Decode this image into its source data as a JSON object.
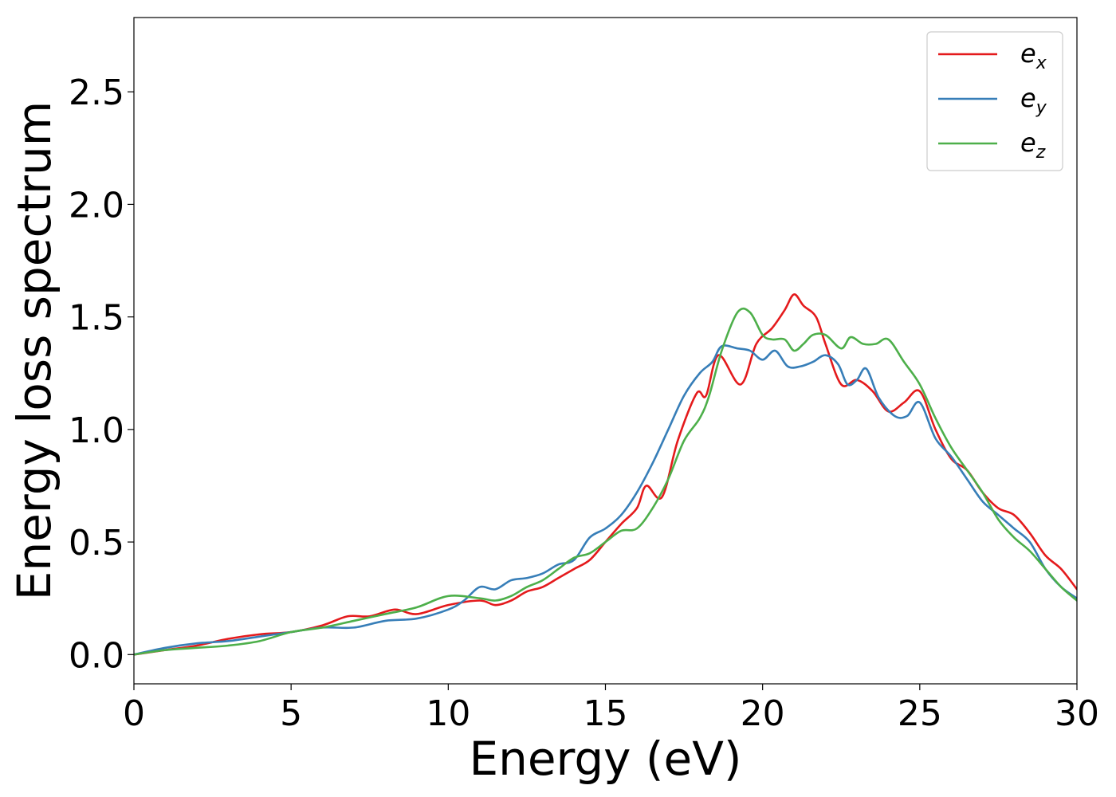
{
  "chart_data": {
    "type": "line",
    "title": "",
    "xlabel": "Energy (eV)",
    "ylabel": "Energy loss spectrum",
    "xlim": [
      0,
      30
    ],
    "ylim": [
      -0.13,
      2.83
    ],
    "xticks": [
      0,
      5,
      10,
      15,
      20,
      25,
      30
    ],
    "xtick_labels": [
      "0",
      "5",
      "10",
      "15",
      "20",
      "25",
      "30"
    ],
    "yticks": [
      0.0,
      0.5,
      1.0,
      1.5,
      2.0,
      2.5
    ],
    "ytick_labels": [
      "0.0",
      "0.5",
      "1.0",
      "1.5",
      "2.0",
      "2.5"
    ],
    "grid": false,
    "legend_position": "top-right",
    "series": [
      {
        "name": "e_x",
        "legend_base": "e",
        "legend_sub": "x",
        "color": "#e41a1c",
        "x": [
          0,
          1,
          2,
          3,
          4,
          5,
          6,
          6.8,
          7.5,
          8.3,
          9,
          10,
          11,
          11.5,
          12,
          12.5,
          13,
          13.5,
          14,
          14.5,
          15,
          15.5,
          16,
          16.3,
          16.8,
          17.3,
          17.9,
          18.2,
          18.6,
          19.3,
          19.8,
          20.3,
          20.7,
          21,
          21.3,
          21.7,
          22,
          22.5,
          23,
          23.5,
          24,
          24.5,
          25,
          25.5,
          26,
          26.5,
          27,
          27.5,
          28,
          28.5,
          29,
          29.5,
          30
        ],
        "y": [
          0.0,
          0.02,
          0.04,
          0.07,
          0.09,
          0.1,
          0.13,
          0.17,
          0.17,
          0.2,
          0.18,
          0.22,
          0.24,
          0.22,
          0.24,
          0.28,
          0.3,
          0.34,
          0.38,
          0.42,
          0.5,
          0.58,
          0.65,
          0.75,
          0.7,
          0.95,
          1.16,
          1.15,
          1.33,
          1.2,
          1.38,
          1.45,
          1.53,
          1.6,
          1.55,
          1.5,
          1.38,
          1.2,
          1.22,
          1.17,
          1.08,
          1.12,
          1.17,
          1.0,
          0.87,
          0.82,
          0.72,
          0.65,
          0.62,
          0.54,
          0.44,
          0.38,
          0.29
        ]
      },
      {
        "name": "e_y",
        "legend_base": "e",
        "legend_sub": "y",
        "color": "#377eb8",
        "x": [
          0,
          1,
          2,
          3,
          4,
          5,
          6,
          7,
          8,
          9,
          10,
          10.5,
          11,
          11.5,
          12,
          12.5,
          13,
          13.5,
          14,
          14.5,
          15,
          15.5,
          16,
          16.5,
          17,
          17.5,
          18,
          18.4,
          18.7,
          19.2,
          19.6,
          20,
          20.4,
          20.8,
          21.2,
          21.6,
          22,
          22.4,
          22.7,
          23,
          23.3,
          23.7,
          24.2,
          24.6,
          25,
          25.5,
          26,
          26.5,
          27,
          27.5,
          28,
          28.5,
          29,
          29.5,
          30
        ],
        "y": [
          0.0,
          0.03,
          0.05,
          0.06,
          0.08,
          0.1,
          0.12,
          0.12,
          0.15,
          0.16,
          0.2,
          0.24,
          0.3,
          0.29,
          0.33,
          0.34,
          0.36,
          0.4,
          0.42,
          0.52,
          0.56,
          0.62,
          0.72,
          0.85,
          1.0,
          1.15,
          1.25,
          1.3,
          1.37,
          1.36,
          1.35,
          1.31,
          1.35,
          1.28,
          1.28,
          1.3,
          1.33,
          1.29,
          1.2,
          1.22,
          1.27,
          1.14,
          1.06,
          1.06,
          1.12,
          0.96,
          0.88,
          0.78,
          0.68,
          0.62,
          0.56,
          0.5,
          0.38,
          0.3,
          0.25
        ]
      },
      {
        "name": "e_z",
        "legend_base": "e",
        "legend_sub": "z",
        "color": "#4daf4a",
        "x": [
          0,
          1,
          2,
          3,
          4,
          5,
          6,
          7,
          8,
          9,
          10,
          11,
          11.5,
          12,
          12.5,
          13,
          13.5,
          14,
          14.5,
          15,
          15.5,
          16,
          16.5,
          17,
          17.5,
          18,
          18.3,
          18.7,
          19.2,
          19.6,
          20,
          20.3,
          20.7,
          21,
          21.3,
          21.6,
          22,
          22.5,
          22.8,
          23.2,
          23.6,
          24,
          24.5,
          25,
          25.5,
          26,
          26.5,
          27,
          27.5,
          28,
          28.5,
          29,
          29.5,
          30
        ],
        "y": [
          0.0,
          0.02,
          0.03,
          0.04,
          0.06,
          0.1,
          0.12,
          0.15,
          0.18,
          0.21,
          0.26,
          0.25,
          0.24,
          0.26,
          0.3,
          0.33,
          0.38,
          0.43,
          0.45,
          0.5,
          0.55,
          0.56,
          0.65,
          0.78,
          0.95,
          1.05,
          1.15,
          1.35,
          1.52,
          1.52,
          1.42,
          1.4,
          1.4,
          1.35,
          1.38,
          1.42,
          1.42,
          1.36,
          1.41,
          1.38,
          1.38,
          1.4,
          1.3,
          1.2,
          1.05,
          0.92,
          0.82,
          0.72,
          0.6,
          0.52,
          0.46,
          0.38,
          0.3,
          0.24
        ]
      }
    ]
  }
}
